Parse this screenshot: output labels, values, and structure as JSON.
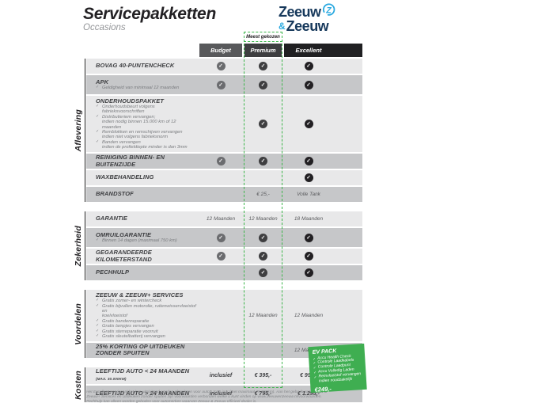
{
  "header": {
    "title": "Servicepakketten",
    "subtitle": "Occasions"
  },
  "logo": {
    "top_word": "Zeeuw",
    "amp": "&",
    "bottom_word": "Zeeuw",
    "z_icon": "zeeuw-z-swoosh-icon"
  },
  "colors": {
    "accent_green": "#3cb54a",
    "brand_navy": "#17395c",
    "brand_blue": "#2aa9e0"
  },
  "icons": {
    "check": "✓"
  },
  "table": {
    "most_chosen": "Meest gekozen",
    "columns": [
      "Budget",
      "Premium",
      "Excellent"
    ],
    "sections": [
      {
        "name": "Aflevering",
        "rows": [
          {
            "label": "BOVAG 40-PUNTENCHECK",
            "cells": [
              "check",
              "check",
              "check"
            ]
          },
          {
            "label": "APK",
            "sub": [
              [
                "Geldigheid van minimaal 12 maanden"
              ]
            ],
            "cells": [
              "check",
              "check",
              "check"
            ]
          },
          {
            "label": "ONDERHOUDSPAKKET",
            "sub": [
              [
                "Onderhoudsbeurt volgens fabrieksvoorschriften"
              ],
              [
                "Distributieriem vervangen;",
                "indien nodig binnen 15.000 km of 12 maanden"
              ],
              [
                "Remblokken en remschijven vervangen",
                "indien niet volgens fabrieksnorm"
              ],
              [
                "Banden vervangen",
                "indien de profieldiepte minder is dan 3mm"
              ]
            ],
            "cells": [
              "",
              "check",
              "check"
            ]
          },
          {
            "label": "REINIGING BINNEN- EN BUITENZIJDE",
            "cells": [
              "check",
              "check",
              "check"
            ]
          },
          {
            "label": "WAXBEHANDELING",
            "cells": [
              "",
              "",
              "check"
            ]
          },
          {
            "label": "BRANDSTOF",
            "cells": [
              "",
              "€ 25,-",
              "Volle Tank"
            ]
          }
        ]
      },
      {
        "name": "Zekerheid",
        "rows": [
          {
            "label": "GARANTIE",
            "cells": [
              "12 Maanden",
              "12 Maanden",
              "18 Maanden"
            ]
          },
          {
            "label": "OMRUILGARANTIE",
            "sub": [
              [
                "Binnen 14 dagen (maximaal 750 km)"
              ]
            ],
            "cells": [
              "check",
              "check",
              "check"
            ]
          },
          {
            "label": "GEGARANDEERDE KILOMETERSTAND",
            "cells": [
              "check",
              "check",
              "check"
            ]
          },
          {
            "label": "PECHHULP",
            "cells": [
              "",
              "check",
              "check"
            ]
          }
        ]
      },
      {
        "name": "Voordelen",
        "rows": [
          {
            "label": "ZEEUW & ZEEUW+ SERVICES",
            "sub": [
              [
                "Gratis zomer- en wintercheck"
              ],
              [
                "Gratis bijvullen motorolie, ruitenwisservloeistof en",
                "koelvloeistof"
              ],
              [
                "Gratis bandenreparatie"
              ],
              [
                "Gratis lampjes vervangen"
              ],
              [
                "Gratis sterreparatie voorruit"
              ],
              [
                "Gratis sleutelbatterij vervangen"
              ]
            ],
            "cells": [
              "",
              "12 Maanden",
              "12 Maanden"
            ]
          },
          {
            "label": "25% KORTING OP UITDEUKEN ZONDER SPUITEN",
            "cells": [
              "",
              "",
              "12 Maanden"
            ]
          }
        ]
      },
      {
        "name": "Kosten",
        "rows": [
          {
            "label": "LEEFTIJD AUTO < 24 MAANDEN",
            "label_note": "(MAX. 30.000KM)",
            "cells": [
              "inclusief",
              "€ 395,-",
              "€ 995,-"
            ]
          },
          {
            "label": "LEEFTIJD AUTO > 24 MAANDEN",
            "cells": [
              "inclusief",
              "€ 795,-",
              "€ 1.295,-"
            ]
          }
        ]
      }
    ]
  },
  "ev_pack": {
    "title": "EV PACK",
    "items": [
      "Accu Health Check",
      "Controle Laadkabels",
      "Controle Laadpunt",
      "Accu Volledig Laden",
      "Remvloeistof vervangen indien noodzakelijk"
    ],
    "price": "€249,-"
  },
  "footnote": "Het Excellent servicepakket kan uitsluitend worden afgesloten voor auto's tot 5 jaar (met maximaal 75.000km). Aan het gebruik van Zeeuw & Zeeuw+ Services en Uitdeuken zonder spuiten zijn voorwaarden verbonden welke u kunt vinden op www.zeeuwenzeeuw.nl/voorwaarden. Pechhulp kan alleen worden geboden voor automerken waarvan Zeeuw & Zeeuw officieel dealer is."
}
